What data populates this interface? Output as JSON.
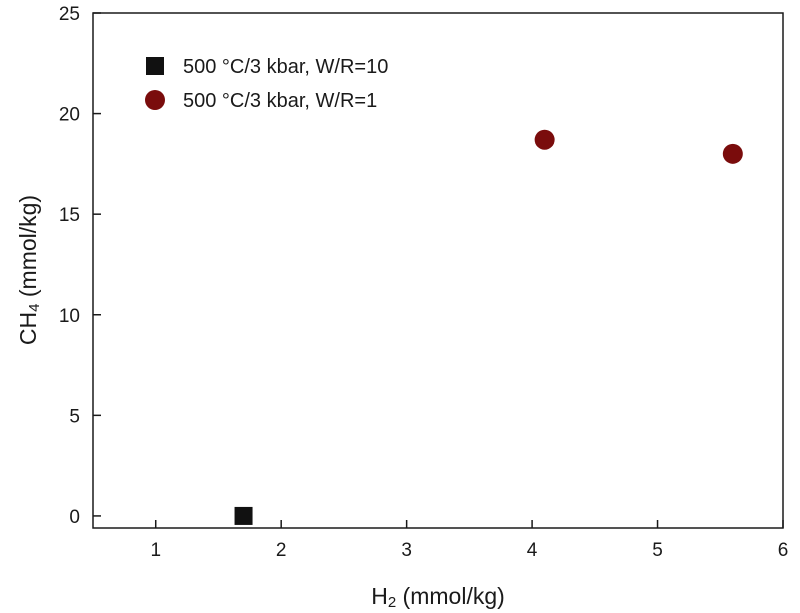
{
  "chart_data": {
    "type": "scatter",
    "title": "",
    "xlabel": {
      "main": "H",
      "sub": "2",
      "tail": " (mmol/kg)"
    },
    "ylabel": {
      "main": "CH",
      "sub": "4",
      "tail": " (mmol/kg)"
    },
    "xlim": [
      0.5,
      6
    ],
    "ylim": [
      -0.6,
      25
    ],
    "xticks": [
      1,
      2,
      3,
      4,
      5,
      6
    ],
    "yticks": [
      0,
      5,
      10,
      15,
      20,
      25
    ],
    "grid": false,
    "legend_position": "top-left",
    "series": [
      {
        "name": "500 °C/3 kbar, W/R=10",
        "marker": "square",
        "color": "#111111",
        "points": [
          {
            "x": 1.7,
            "y": 0
          }
        ]
      },
      {
        "name": "500 °C/3 kbar, W/R=1",
        "marker": "circle",
        "color": "#7a0c0c",
        "points": [
          {
            "x": 4.1,
            "y": 18.7
          },
          {
            "x": 5.6,
            "y": 18.0
          }
        ]
      }
    ]
  }
}
